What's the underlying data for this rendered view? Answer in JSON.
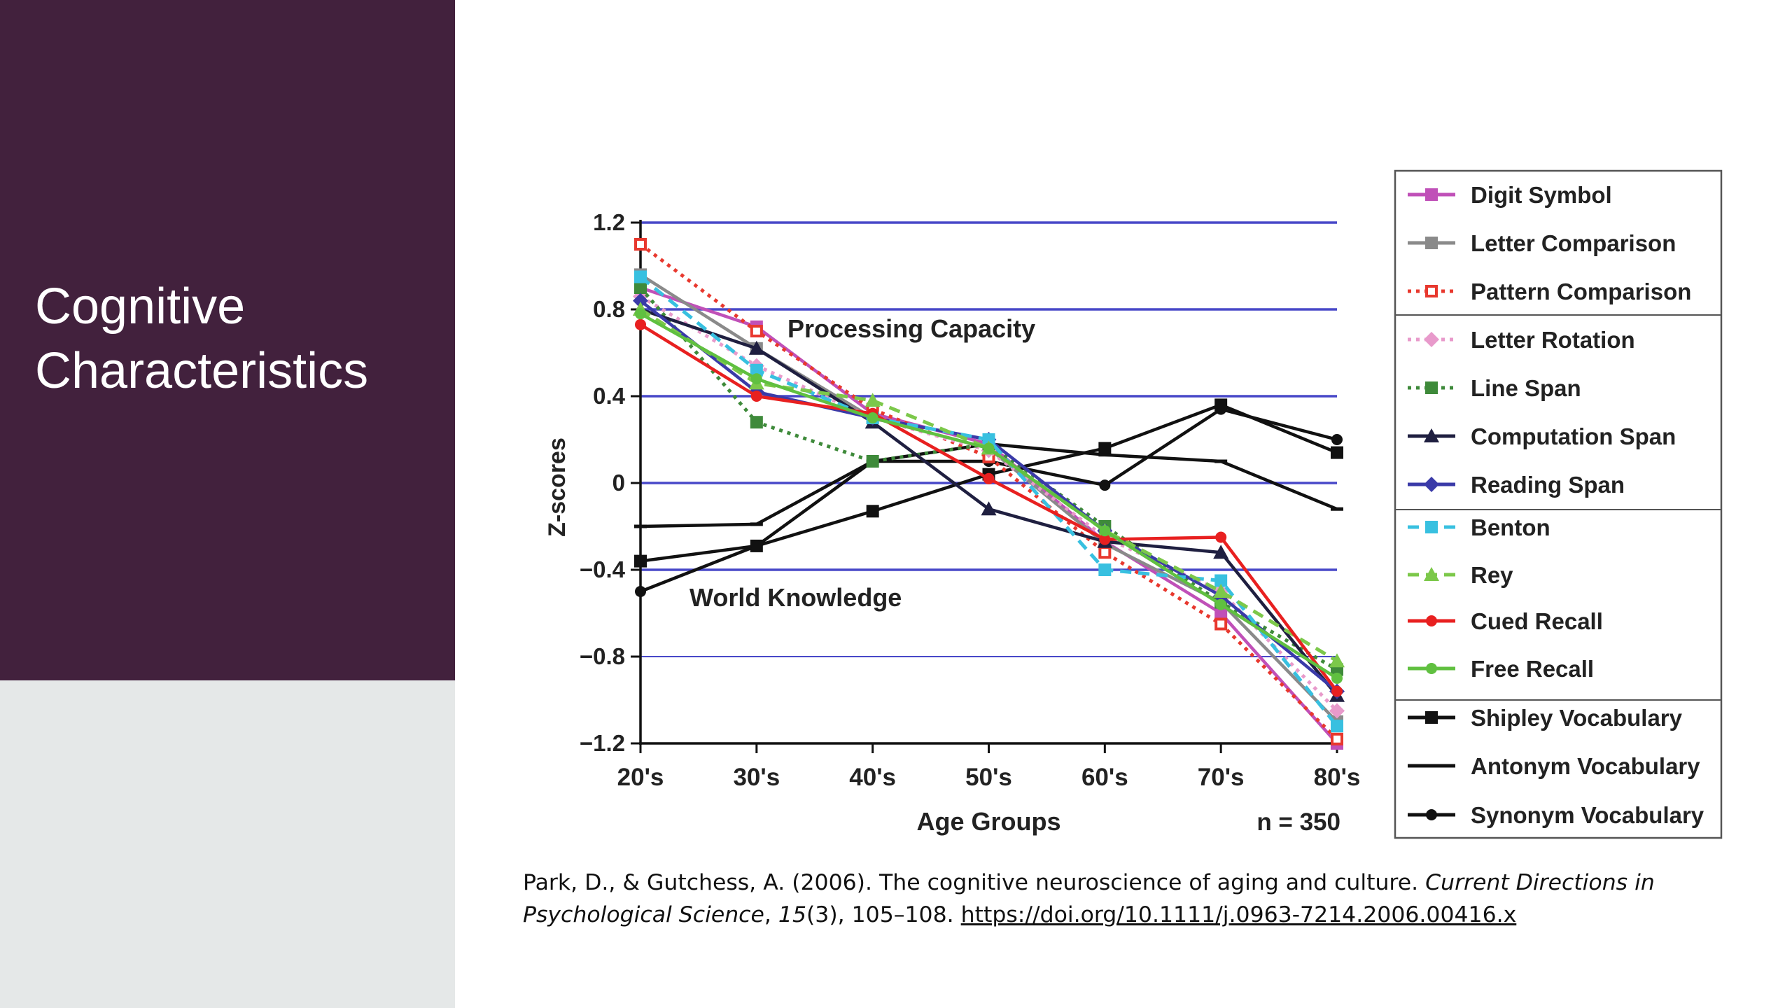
{
  "slide": {
    "title_line1": "Cognitive",
    "title_line2": "Characteristics",
    "colors": {
      "panel": "#42213d",
      "panel_bottom": "#e5e8e8",
      "title": "#ffffff"
    }
  },
  "chart_data": {
    "type": "line",
    "categories": [
      "20's",
      "30's",
      "40's",
      "50's",
      "60's",
      "70's",
      "80's"
    ],
    "xlabel": "Age Groups",
    "ylabel": "Z-scores",
    "ylim": [
      -1.2,
      1.2
    ],
    "yticks": [
      1.2,
      0.8,
      0.4,
      0,
      -0.4,
      -0.8,
      -1.2
    ],
    "ytick_labels": [
      "1.2",
      "0.8",
      "0.4",
      "0",
      "−0.4",
      "−0.8",
      "−1.2"
    ],
    "grid": "horizontal",
    "legend_position": "right",
    "annotations": {
      "processing": "Processing Capacity",
      "world": "World Knowledge",
      "n": "n = 350"
    },
    "series": [
      {
        "name": "Digit Symbol",
        "color": "#c050b8",
        "dash": "solid",
        "marker": "square",
        "values": [
          0.9,
          0.72,
          0.32,
          0.18,
          -0.27,
          -0.6,
          -1.2
        ]
      },
      {
        "name": "Letter Comparison",
        "color": "#8a8a8a",
        "dash": "solid",
        "marker": "square",
        "values": [
          0.96,
          0.62,
          0.3,
          0.16,
          -0.28,
          -0.55,
          -1.1
        ]
      },
      {
        "name": "Pattern Comparison",
        "color": "#e8382e",
        "dash": "dotted",
        "marker": "square-open",
        "values": [
          1.1,
          0.7,
          0.34,
          0.12,
          -0.32,
          -0.65,
          -1.18
        ]
      },
      {
        "name": "Letter Rotation",
        "color": "#e89acb",
        "dash": "dotted",
        "marker": "diamond",
        "values": [
          0.86,
          0.54,
          0.3,
          0.15,
          -0.25,
          -0.5,
          -1.05
        ]
      },
      {
        "name": "Line Span",
        "color": "#3e8a3a",
        "dash": "dotted",
        "marker": "square",
        "values": [
          0.9,
          0.28,
          0.1,
          0.18,
          -0.2,
          -0.55,
          -0.86
        ]
      },
      {
        "name": "Computation Span",
        "color": "#1f1f40",
        "dash": "solid",
        "marker": "triangle",
        "values": [
          0.8,
          0.62,
          0.28,
          -0.12,
          -0.27,
          -0.32,
          -0.98
        ]
      },
      {
        "name": "Reading Span",
        "color": "#3a3aa8",
        "dash": "solid",
        "marker": "diamond",
        "values": [
          0.84,
          0.42,
          0.3,
          0.2,
          -0.22,
          -0.52,
          -0.96
        ]
      },
      {
        "name": "Benton",
        "color": "#38c0e0",
        "dash": "dashed",
        "marker": "square",
        "values": [
          0.95,
          0.52,
          0.3,
          0.2,
          -0.4,
          -0.45,
          -1.12
        ]
      },
      {
        "name": "Rey",
        "color": "#7cc84a",
        "dash": "dashed",
        "marker": "triangle",
        "values": [
          0.8,
          0.46,
          0.38,
          0.16,
          -0.22,
          -0.5,
          -0.82
        ]
      },
      {
        "name": "Cued Recall",
        "color": "#e82020",
        "dash": "solid",
        "marker": "circle",
        "values": [
          0.73,
          0.4,
          0.32,
          0.02,
          -0.26,
          -0.25,
          -0.96
        ]
      },
      {
        "name": "Free Recall",
        "color": "#60c040",
        "dash": "solid",
        "marker": "circle",
        "values": [
          0.78,
          0.48,
          0.3,
          0.16,
          -0.22,
          -0.56,
          -0.9
        ]
      },
      {
        "name": "Shipley Vocabulary",
        "color": "#111111",
        "dash": "solid",
        "marker": "square",
        "values": [
          -0.36,
          -0.29,
          -0.13,
          0.04,
          0.16,
          0.36,
          0.14
        ]
      },
      {
        "name": "Antonym Vocabulary",
        "color": "#111111",
        "dash": "solid",
        "marker": "dash",
        "values": [
          -0.2,
          -0.19,
          0.1,
          0.18,
          0.13,
          0.1,
          -0.12
        ]
      },
      {
        "name": "Synonym Vocabulary",
        "color": "#111111",
        "dash": "solid",
        "marker": "circle",
        "values": [
          -0.5,
          -0.29,
          0.1,
          0.1,
          -0.01,
          0.34,
          0.2
        ]
      }
    ]
  },
  "citation": {
    "authors": "Park, D., & Gutchess, A. (2006). The cognitive neuroscience of aging and culture. ",
    "journal": "Current Directions in Psychological Science",
    "sep1": ", ",
    "volume": "15",
    "issue_pages": "(3), 105–108. ",
    "doi": "https://doi.org/10.1111/j.0963-7214.2006.00416.x"
  }
}
